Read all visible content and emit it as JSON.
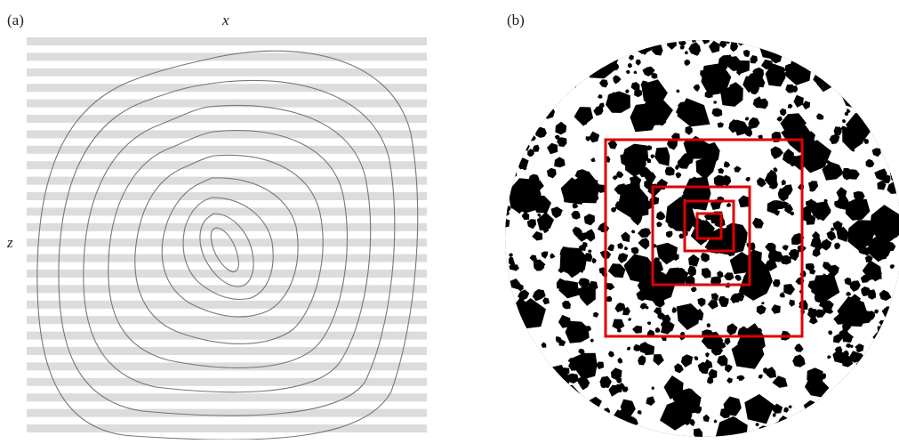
{
  "panels": [
    {
      "label": "(a)",
      "axis_x": "x",
      "axis_z": "z"
    },
    {
      "label": "(b)"
    }
  ]
}
